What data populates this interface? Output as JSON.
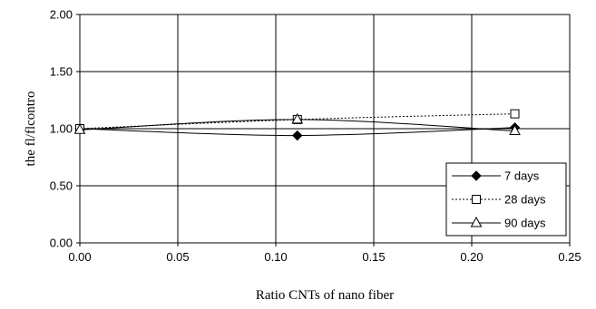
{
  "chart_data": {
    "type": "line",
    "xlabel": "Ratio CNTs of nano fiber",
    "ylabel": "the fl/flcontro",
    "xlim": [
      0,
      0.25
    ],
    "ylim": [
      0,
      2
    ],
    "x_ticks": [
      "0.00",
      "0.05",
      "0.10",
      "0.15",
      "0.20",
      "0.25"
    ],
    "y_ticks": [
      "0.00",
      "0.50",
      "1.00",
      "1.50",
      "2.00"
    ],
    "grid": true,
    "legend_position": "bottom-right",
    "series": [
      {
        "name": "7 days",
        "x": [
          0,
          0.111,
          0.222
        ],
        "y": [
          1.0,
          0.94,
          1.01
        ],
        "marker": "diamond",
        "line": "solid"
      },
      {
        "name": "28 days",
        "x": [
          0,
          0.111,
          0.222
        ],
        "y": [
          1.0,
          1.08,
          1.13
        ],
        "marker": "square-open",
        "line": "dotted"
      },
      {
        "name": "90 days",
        "x": [
          0,
          0.111,
          0.222
        ],
        "y": [
          0.99,
          1.08,
          0.98
        ],
        "marker": "triangle-open",
        "line": "solid"
      }
    ]
  }
}
